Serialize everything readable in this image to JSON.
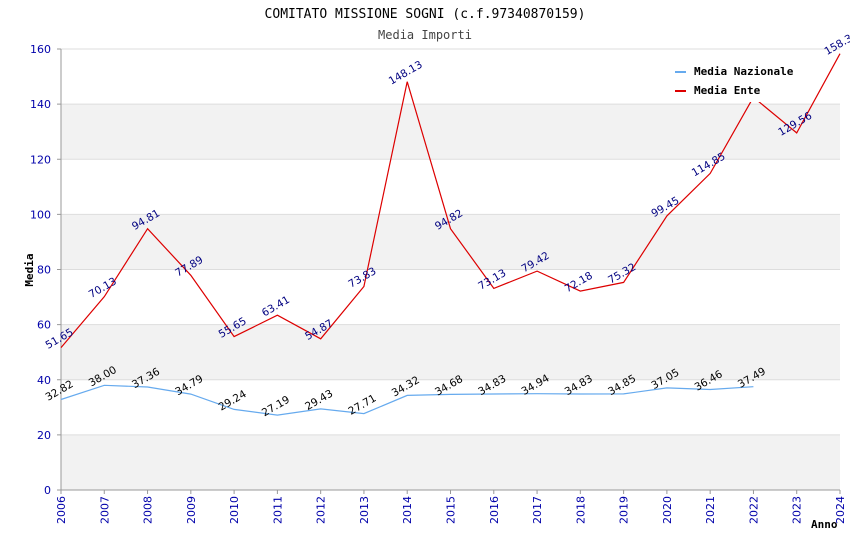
{
  "chart_data": {
    "type": "line",
    "title": "COMITATO MISSIONE SOGNI (c.f.97340870159)",
    "subtitle": "Media Importi",
    "xlabel": "Anno",
    "ylabel": "Media",
    "ylim": [
      0,
      160
    ],
    "yticks": [
      0,
      20,
      40,
      60,
      80,
      100,
      120,
      140,
      160
    ],
    "categories": [
      "2006",
      "2007",
      "2008",
      "2009",
      "2010",
      "2011",
      "2012",
      "2013",
      "2014",
      "2015",
      "2016",
      "2017",
      "2018",
      "2019",
      "2020",
      "2021",
      "2022",
      "2023",
      "2024"
    ],
    "series": [
      {
        "name": "Media Nazionale",
        "color": "#66aaee",
        "label_color": "#000000",
        "values": [
          32.82,
          38.0,
          37.36,
          34.79,
          29.24,
          27.19,
          29.43,
          27.71,
          34.32,
          34.68,
          34.83,
          34.94,
          34.83,
          34.85,
          37.05,
          36.46,
          37.49,
          null,
          null
        ],
        "labels": [
          "32.82",
          "38.00",
          "37.36",
          "34.79",
          "29.24",
          "27.19",
          "29.43",
          "27.71",
          "34.32",
          "34.68",
          "34.83",
          "34.94",
          "34.83",
          "34.85",
          "37.05",
          "36.46",
          "37.49",
          null,
          null
        ]
      },
      {
        "name": "Media Ente",
        "color": "#dd0000",
        "label_color": "#000080",
        "values": [
          51.65,
          70.13,
          94.81,
          77.89,
          55.65,
          63.41,
          54.87,
          73.83,
          148.13,
          94.82,
          73.13,
          79.42,
          72.18,
          75.32,
          99.45,
          114.85,
          142.5,
          129.56,
          158.3
        ],
        "labels": [
          "51.65",
          "70.13",
          "94.81",
          "77.89",
          "55.65",
          "63.41",
          "54.87",
          "73.83",
          "148.13",
          "94.82",
          "73.13",
          "79.42",
          "72.18",
          "75.32",
          "99.45",
          "114.85",
          null,
          "129.56",
          "158.3"
        ]
      }
    ],
    "legend": "top-right",
    "grid": true,
    "band_color": "#f2f2f2",
    "grid_color": "#dddddd"
  }
}
